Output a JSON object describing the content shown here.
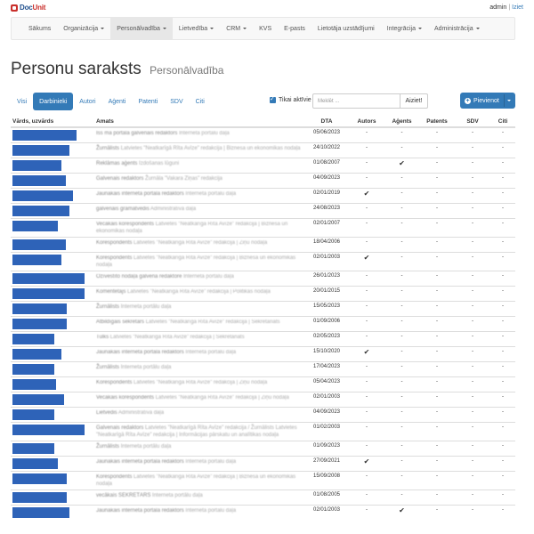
{
  "header": {
    "logo_text_main": "Doc",
    "logo_text_accent": "Unit",
    "user": "admin",
    "separator": "|",
    "logout": "Iziet"
  },
  "nav": [
    {
      "label": "Sākums",
      "dropdown": false,
      "active": false
    },
    {
      "label": "Organizācija",
      "dropdown": true,
      "active": false
    },
    {
      "label": "Personālvadība",
      "dropdown": true,
      "active": true
    },
    {
      "label": "Lietvedība",
      "dropdown": true,
      "active": false
    },
    {
      "label": "CRM",
      "dropdown": true,
      "active": false
    },
    {
      "label": "KVS",
      "dropdown": false,
      "active": false
    },
    {
      "label": "E-pasts",
      "dropdown": false,
      "active": false
    },
    {
      "label": "Lietotāja uzstādījumi",
      "dropdown": false,
      "active": false
    },
    {
      "label": "Integrācija",
      "dropdown": true,
      "active": false
    },
    {
      "label": "Administrācija",
      "dropdown": true,
      "active": false
    }
  ],
  "page": {
    "title": "Personu saraksts",
    "subtitle": "Personālvadība"
  },
  "tabs": [
    "Visi",
    "Darbinieki",
    "Autori",
    "Aģenti",
    "Patenti",
    "SDV",
    "Citi"
  ],
  "active_tab": 1,
  "filter": {
    "active_only_label": "Tikai aktīvie",
    "active_only_checked": true,
    "search_placeholder": "Meklēt ...",
    "search_button": "Aiziet!"
  },
  "add_button": "Pievienot",
  "table": {
    "columns": [
      "Vārds, uzvārds",
      "Amats",
      "DTA",
      "Autors",
      "Aģents",
      "Patents",
      "SDV",
      "Citi"
    ],
    "rows": [
      {
        "name_bar_pct": 0.85,
        "amats": "Iss ma portāla galvenais redaktors",
        "dept": "Interneta portālu daļa",
        "dta": "05/06/2023",
        "autors": false,
        "agents": false
      },
      {
        "name_bar_pct": 0.75,
        "amats": "Žurnālists",
        "dept": "Latvietes \"Neatkarīgā Rīta Avīze\" redakcija | Biznesa un ekonomikas nodaļa",
        "dta": "24/10/2022",
        "autors": false,
        "agents": false
      },
      {
        "name_bar_pct": 0.65,
        "amats": "Reklāmas aģents",
        "dept": "Izdošanas lūguni",
        "dta": "01/08/2007",
        "autors": false,
        "agents": true
      },
      {
        "name_bar_pct": 0.7,
        "amats": "Galvenais redaktors",
        "dept": "Žurnāla \"Vakara Ziņas\" redakcija",
        "dta": "04/09/2023",
        "autors": false,
        "agents": false
      },
      {
        "name_bar_pct": 0.8,
        "amats": "Jaunākais interneta portāla redaktors",
        "dept": "Interneta portālu daļa",
        "dta": "02/01/2019",
        "autors": true,
        "agents": false
      },
      {
        "name_bar_pct": 0.75,
        "amats": "galvenais grāmatvedis",
        "dept": "Administratīvā daļa",
        "dta": "24/08/2023",
        "autors": false,
        "agents": false
      },
      {
        "name_bar_pct": 0.6,
        "amats": "Vecākais korespondents",
        "dept": "Latvietes \"Neatkarīgā Rīta Avīze\" redakcija | Biznesa un ekonomikas nodaļa",
        "dta": "02/01/2007",
        "autors": false,
        "agents": false
      },
      {
        "name_bar_pct": 0.7,
        "amats": "Korespondents",
        "dept": "Latvietes \"Neatkarīgā Rīta Avīze\" redakcija | Ziņu nodaļa",
        "dta": "18/04/2006",
        "autors": false,
        "agents": false
      },
      {
        "name_bar_pct": 0.65,
        "amats": "Korespondents",
        "dept": "Latvietes \"Neatkarīgā Rīta Avīze\" redakcija | Biznesa un ekonomikas nodaļa",
        "dta": "02/01/2003",
        "autors": true,
        "agents": false
      },
      {
        "name_bar_pct": 0.95,
        "amats": "Ozīvestīto nodaļa galvenā redaktore",
        "dept": "Interneta portālu daļa",
        "dta": "26/01/2023",
        "autors": false,
        "agents": false
      },
      {
        "name_bar_pct": 0.95,
        "amats": "Komentētājs",
        "dept": "Latvietes \"Neatkarīgā Rīta Avīze\" redakcija | Politikas nodaļa",
        "dta": "20/01/2015",
        "autors": false,
        "agents": false
      },
      {
        "name_bar_pct": 0.72,
        "amats": "Žurnālists",
        "dept": "Interneta portālu daļa",
        "dta": "15/05/2023",
        "autors": false,
        "agents": false
      },
      {
        "name_bar_pct": 0.72,
        "amats": "Atbildīgais sekretārs",
        "dept": "Latvietes \"Neatkarīgā Rīta Avīze\" redakcija | Sekretariāts",
        "dta": "01/09/2006",
        "autors": false,
        "agents": false
      },
      {
        "name_bar_pct": 0.55,
        "amats": "Tulks",
        "dept": "Latvietes \"Neatkarīgā Rīta Avīze\" redakcija | Sekretariāts",
        "dta": "02/05/2023",
        "autors": false,
        "agents": false
      },
      {
        "name_bar_pct": 0.65,
        "amats": "Jaunākais interneta portāla redaktors",
        "dept": "Interneta portālu daļa",
        "dta": "15/10/2020",
        "autors": true,
        "agents": false
      },
      {
        "name_bar_pct": 0.55,
        "amats": "Žurnālists",
        "dept": "Interneta portālu daļa",
        "dta": "17/04/2023",
        "autors": false,
        "agents": false
      },
      {
        "name_bar_pct": 0.58,
        "amats": "Korespondents",
        "dept": "Latvietes \"Neatkarīgā Rīta Avīze\" redakcija | Ziņu nodaļa",
        "dta": "05/04/2023",
        "autors": false,
        "agents": false
      },
      {
        "name_bar_pct": 0.68,
        "amats": "Vecākais korespondents",
        "dept": "Latvietes \"Neatkarīgā Rīta Avīze\" redakcija | Ziņu nodaļa",
        "dta": "02/01/2003",
        "autors": false,
        "agents": false
      },
      {
        "name_bar_pct": 0.55,
        "amats": "Lietvedis",
        "dept": "Administratīvā daļa",
        "dta": "04/09/2023",
        "autors": false,
        "agents": false
      },
      {
        "name_bar_pct": 0.95,
        "amats": "Galvenais redaktors",
        "dept": "Latvietes \"Neatkarīgā Rīta Avīze\" redakcija / Žurnālists Latvietes \"Neatkarīgā Rīta Avīze\" redakcija | Informācijas pārskatu un analītikas nodaļa",
        "dta": "01/02/2003",
        "autors": false,
        "agents": false
      },
      {
        "name_bar_pct": 0.55,
        "amats": "Žurnālists",
        "dept": "Interneta portālu daļa",
        "dta": "01/09/2023",
        "autors": false,
        "agents": false
      },
      {
        "name_bar_pct": 0.6,
        "amats": "Jaunākais interneta portāla redaktors",
        "dept": "Interneta portālu daļa",
        "dta": "27/09/2021",
        "autors": true,
        "agents": false
      },
      {
        "name_bar_pct": 0.72,
        "amats": "Korespondents",
        "dept": "Latvietes \"Neatkarīgā Rīta Avīze\" redakcija | Biznesa un ekonomikas nodaļa",
        "dta": "15/09/2008",
        "autors": false,
        "agents": false
      },
      {
        "name_bar_pct": 0.72,
        "amats": "vecākais SEKRETĀRS",
        "dept": "Interneta portālu daļa",
        "dta": "01/08/2005",
        "autors": false,
        "agents": false
      },
      {
        "name_bar_pct": 0.75,
        "amats": "Jaunākais interneta portāla redaktors",
        "dept": "Interneta portālu daļa",
        "dta": "02/01/2003",
        "autors": false,
        "agents": true
      }
    ]
  }
}
